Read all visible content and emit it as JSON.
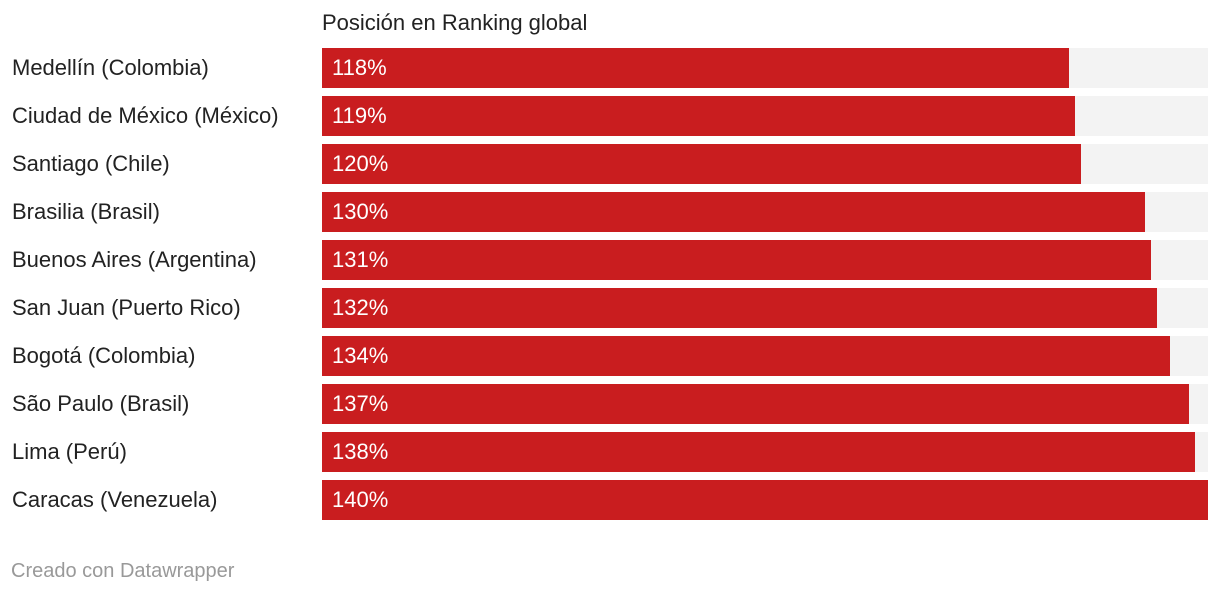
{
  "chart_data": {
    "type": "bar",
    "orientation": "horizontal",
    "title": "Posición en Ranking global",
    "categories": [
      "Medellín (Colombia)",
      "Ciudad de México (México)",
      "Santiago (Chile)",
      "Brasilia (Brasil)",
      "Buenos Aires (Argentina)",
      "San Juan (Puerto Rico)",
      "Bogotá (Colombia)",
      "São Paulo (Brasil)",
      "Lima (Perú)",
      "Caracas (Venezuela)"
    ],
    "values": [
      118,
      119,
      120,
      130,
      131,
      132,
      134,
      137,
      138,
      140
    ],
    "value_labels": [
      "118%",
      "119%",
      "120%",
      "130%",
      "131%",
      "132%",
      "134%",
      "137%",
      "138%",
      "140%"
    ],
    "xlim": [
      0,
      140
    ],
    "grid": false,
    "legend": "none",
    "colors": {
      "bar": "#c91d1f",
      "track": "#f3f3f3",
      "label": "#222222",
      "value_label": "#ffffff"
    }
  },
  "footer": {
    "credit": "Creado con Datawrapper"
  }
}
